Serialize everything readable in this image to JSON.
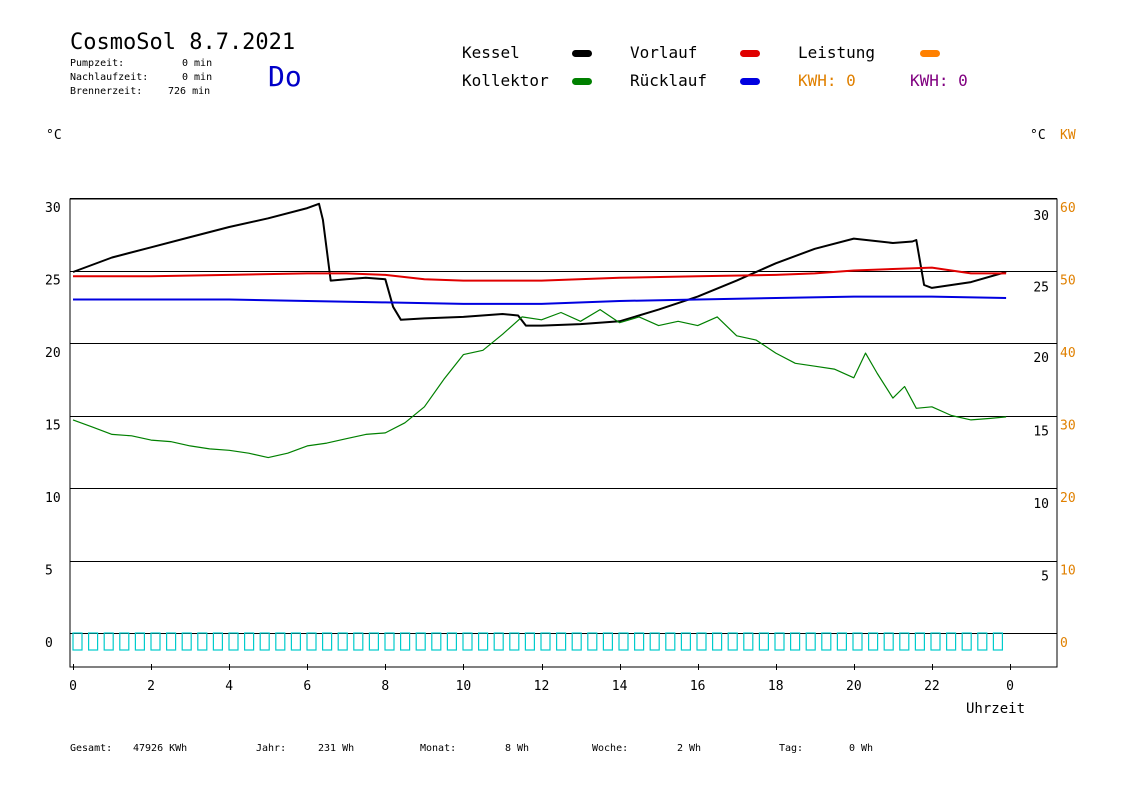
{
  "header": {
    "title": "CosmoSol 8.7.2021",
    "stats": [
      {
        "label": "Pumpzeit:",
        "value": "0 min"
      },
      {
        "label": "Nachlaufzeit:",
        "value": "0 min"
      },
      {
        "label": "Brennerzeit:",
        "value": "726 min"
      }
    ],
    "day": "Do"
  },
  "legend": {
    "items": [
      {
        "label": "Kessel",
        "color": "#000000"
      },
      {
        "label": "Kollektor",
        "color": "#008000"
      },
      {
        "label": "Vorlauf",
        "color": "#e00000"
      },
      {
        "label": "Rücklauf",
        "color": "#0000e0"
      },
      {
        "label": "Leistung",
        "color": "#ff8000"
      }
    ],
    "kwh": [
      {
        "text": "KWH: 0",
        "color": "#e08000"
      },
      {
        "text": "KWH: 0",
        "color": "#800080"
      }
    ]
  },
  "axes": {
    "left_unit": "°C",
    "right_unit_c": "°C",
    "right_unit_kw": "KW",
    "x_label": "Uhrzeit"
  },
  "footer": {
    "items": [
      {
        "label": "Gesamt:",
        "value": "47926 KWh"
      },
      {
        "label": "Jahr:",
        "value": "231 Wh"
      },
      {
        "label": "Monat:",
        "value": "8 Wh"
      },
      {
        "label": "Woche:",
        "value": "2 Wh"
      },
      {
        "label": "Tag:",
        "value": "0 Wh"
      }
    ]
  },
  "chart_data": {
    "type": "line",
    "x_ticks": [
      "0",
      "2",
      "4",
      "6",
      "8",
      "10",
      "12",
      "14",
      "16",
      "18",
      "20",
      "22",
      "0"
    ],
    "xlim": [
      0,
      24
    ],
    "ylim": [
      -2.5,
      30.5
    ],
    "left_ticks": [
      "30",
      "25",
      "20",
      "15",
      "10",
      "5",
      "0"
    ],
    "right_ticks_c": [
      "30",
      "25",
      "20",
      "15",
      "10",
      "5"
    ],
    "right_ticks_kw": [
      "60",
      "50",
      "40",
      "30",
      "20",
      "10",
      "0"
    ],
    "grid": true,
    "series": [
      {
        "name": "Kessel",
        "color": "#000000",
        "x": [
          0,
          1,
          2,
          3,
          4,
          5,
          6,
          6.3,
          6.4,
          6.6,
          7,
          7.5,
          8,
          8.2,
          8.4,
          9,
          10,
          11,
          11.4,
          11.6,
          12,
          13,
          14,
          15,
          16,
          17,
          18,
          19,
          20,
          21,
          21.5,
          21.6,
          21.8,
          22,
          23,
          23.9
        ],
        "y": [
          24.9,
          25.9,
          26.6,
          27.3,
          28.0,
          28.6,
          29.3,
          29.6,
          28.5,
          24.3,
          24.4,
          24.5,
          24.4,
          22.5,
          21.6,
          21.7,
          21.8,
          22.0,
          21.9,
          21.2,
          21.2,
          21.3,
          21.5,
          22.3,
          23.2,
          24.3,
          25.5,
          26.5,
          27.2,
          26.9,
          27.0,
          27.1,
          24.0,
          23.8,
          24.2,
          24.9
        ]
      },
      {
        "name": "Kollektor",
        "color": "#008000",
        "x": [
          0,
          0.5,
          1,
          1.5,
          2,
          2.5,
          3,
          3.5,
          4,
          4.5,
          5,
          5.5,
          6,
          6.5,
          7,
          7.5,
          8,
          8.5,
          9,
          9.5,
          10,
          10.5,
          11,
          11.5,
          12,
          12.5,
          13,
          13.5,
          14,
          14.5,
          15,
          15.5,
          16,
          16.5,
          17,
          17.5,
          18,
          18.5,
          19,
          19.5,
          20,
          20.3,
          20.6,
          21,
          21.3,
          21.6,
          22,
          22.5,
          23,
          23.5,
          23.9
        ],
        "y": [
          14.7,
          14.2,
          13.7,
          13.6,
          13.3,
          13.2,
          12.9,
          12.7,
          12.6,
          12.4,
          12.1,
          12.4,
          12.9,
          13.1,
          13.4,
          13.7,
          13.8,
          14.5,
          15.6,
          17.5,
          19.2,
          19.5,
          20.6,
          21.8,
          21.6,
          22.1,
          21.5,
          22.3,
          21.4,
          21.8,
          21.2,
          21.5,
          21.2,
          21.8,
          20.5,
          20.2,
          19.3,
          18.6,
          18.4,
          18.2,
          17.6,
          19.3,
          17.9,
          16.2,
          17.0,
          15.5,
          15.6,
          15.0,
          14.7,
          14.8,
          14.9
        ]
      },
      {
        "name": "Vorlauf",
        "color": "#e00000",
        "x": [
          0,
          2,
          4,
          6,
          7,
          8,
          9,
          10,
          12,
          14,
          16,
          18,
          19,
          20,
          21,
          22,
          23,
          23.9
        ],
        "y": [
          24.6,
          24.6,
          24.7,
          24.8,
          24.8,
          24.7,
          24.4,
          24.3,
          24.3,
          24.5,
          24.6,
          24.7,
          24.8,
          25.0,
          25.1,
          25.2,
          24.8,
          24.8
        ]
      },
      {
        "name": "Rücklauf",
        "color": "#0000e0",
        "x": [
          0,
          2,
          4,
          6,
          8,
          10,
          12,
          14,
          16,
          18,
          20,
          22,
          23.9
        ],
        "y": [
          23.0,
          23.0,
          23.0,
          22.9,
          22.8,
          22.7,
          22.7,
          22.9,
          23.0,
          23.1,
          23.2,
          23.2,
          23.1
        ]
      }
    ]
  }
}
